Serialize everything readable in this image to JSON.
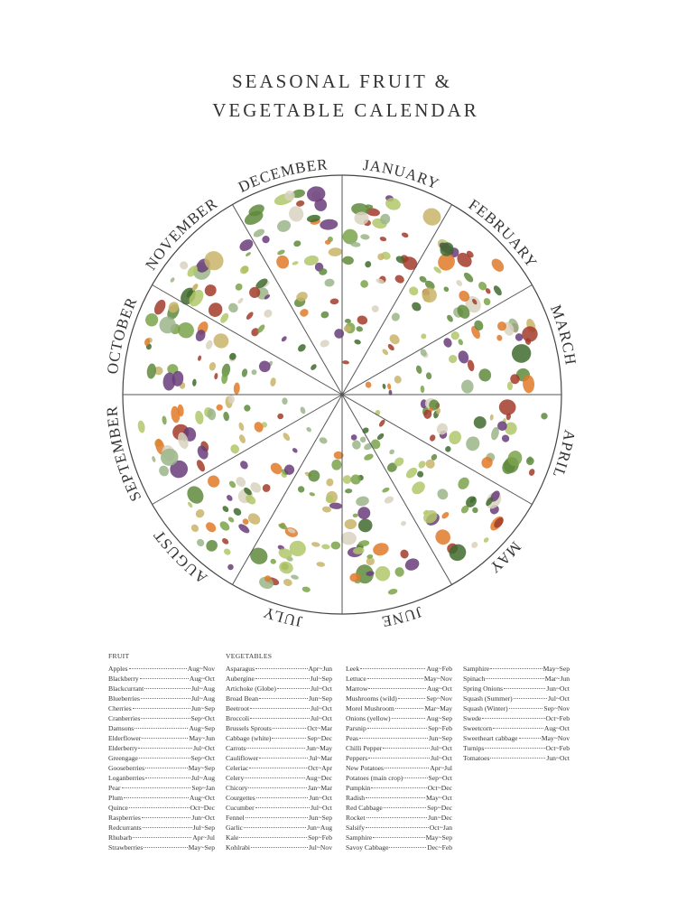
{
  "title_lines": [
    "SEASONAL FRUIT &",
    "VEGETABLE CALENDAR"
  ],
  "months": [
    "JANUARY",
    "FEBRUARY",
    "MARCH",
    "APRIL",
    "MAY",
    "JUNE",
    "JULY",
    "AUGUST",
    "SEPTEMBER",
    "OCTOBER",
    "NOVEMBER",
    "DECEMBER"
  ],
  "fruit": {
    "heading": "FRUIT",
    "items": [
      {
        "name": "Apples",
        "season": "Aug~Nov"
      },
      {
        "name": "Blackberry",
        "season": "Aug~Oct"
      },
      {
        "name": "Blackcurrant",
        "season": "Jul~Aug"
      },
      {
        "name": "Blueberries",
        "season": "Jul~Aug"
      },
      {
        "name": "Cherries",
        "season": "Jun~Sep"
      },
      {
        "name": "Cranberries",
        "season": "Sep~Oct"
      },
      {
        "name": "Damsons",
        "season": "Aug~Sep"
      },
      {
        "name": "Elderflower",
        "season": "May~Jun"
      },
      {
        "name": "Elderberry",
        "season": "Jul~Oct"
      },
      {
        "name": "Greengage",
        "season": "Sep~Oct"
      },
      {
        "name": "Gooseberries",
        "season": "May~Sep"
      },
      {
        "name": "Loganberries",
        "season": "Jul~Aug"
      },
      {
        "name": "Pear",
        "season": "Sep~Jan"
      },
      {
        "name": "Plum",
        "season": "Aug~Oct"
      },
      {
        "name": "Quince",
        "season": "Oct~Dec"
      },
      {
        "name": "Raspberries",
        "season": "Jun~Oct"
      },
      {
        "name": "Redcurrants",
        "season": "Jul~Sep"
      },
      {
        "name": "Rhubarb",
        "season": "Apr~Jul"
      },
      {
        "name": "Strawberries",
        "season": "May~Sep"
      }
    ]
  },
  "vegetables": {
    "heading": "VEGETABLES",
    "columns": [
      [
        {
          "name": "Asparagus",
          "season": "Apr~Jun"
        },
        {
          "name": "Aubergine",
          "season": "Jul~Sep"
        },
        {
          "name": "Artichoke (Globe)",
          "season": "Jul~Oct"
        },
        {
          "name": "Broad Bean",
          "season": "Jun~Sep"
        },
        {
          "name": "Beetroot",
          "season": "Jul~Oct"
        },
        {
          "name": "Broccoli",
          "season": "Jul~Oct"
        },
        {
          "name": "Brussels Sprouts",
          "season": "Oct~Mar"
        },
        {
          "name": "Cabbage (white)",
          "season": "Sep~Dec"
        },
        {
          "name": "Carrots",
          "season": "Jun~May"
        },
        {
          "name": "Cauliflower",
          "season": "Jul~Mar"
        },
        {
          "name": "Celeriac",
          "season": "Oct~Apr"
        },
        {
          "name": "Celery",
          "season": "Aug~Dec"
        },
        {
          "name": "Chicory",
          "season": "Jan~Mar"
        },
        {
          "name": "Courgettes",
          "season": "Jun~Oct"
        },
        {
          "name": "Cucumber",
          "season": "Jul~Oct"
        },
        {
          "name": "Fennel",
          "season": "Jun~Sep"
        },
        {
          "name": "Garlic",
          "season": "Jun~Aug"
        },
        {
          "name": "Kale",
          "season": "Sep~Feb"
        },
        {
          "name": "Kohlrabi",
          "season": "Jul~Nov"
        }
      ],
      [
        {
          "name": "Leek",
          "season": "Aug~Feb"
        },
        {
          "name": "Lettuce",
          "season": "May~Nov"
        },
        {
          "name": "Marrow",
          "season": "Aug~Oct"
        },
        {
          "name": "Mushrooms (wild)",
          "season": "Sep~Nov"
        },
        {
          "name": "Morel Mushroom",
          "season": "Mar~May"
        },
        {
          "name": "Onions (yellow)",
          "season": "Aug~Sep"
        },
        {
          "name": "Parsnip",
          "season": "Sep~Feb"
        },
        {
          "name": "Peas",
          "season": "Jun~Sep"
        },
        {
          "name": "Chilli Pepper",
          "season": "Jul~Oct"
        },
        {
          "name": "Peppers",
          "season": "Jul~Oct"
        },
        {
          "name": "New Potatoes",
          "season": "Apr~Jul"
        },
        {
          "name": "Potatoes (main crop)",
          "season": "Sep~Oct"
        },
        {
          "name": "Pumpkin",
          "season": "Oct~Dec"
        },
        {
          "name": "Radish",
          "season": "May~Oct"
        },
        {
          "name": "Red Cabbage",
          "season": "Sep~Dec"
        },
        {
          "name": "Rocket",
          "season": "Jun~Dec"
        },
        {
          "name": "Salsify",
          "season": "Oct~Jan"
        },
        {
          "name": "Samphire",
          "season": "May~Sep"
        },
        {
          "name": "Savoy Cabbage",
          "season": "Dec~Feb"
        }
      ],
      [
        {
          "name": "Samphire",
          "season": "May~Sep"
        },
        {
          "name": "Spinach",
          "season": "Mar~Jun"
        },
        {
          "name": "Spring Onions",
          "season": "Jun~Oct"
        },
        {
          "name": "Squash (Summer)",
          "season": "Jul~Oct"
        },
        {
          "name": "Squash (Winter)",
          "season": "Sep~Nov"
        },
        {
          "name": "Swede",
          "season": "Oct~Feb"
        },
        {
          "name": "Sweetcorn",
          "season": "Aug~Oct"
        },
        {
          "name": "Sweetheart cabbage",
          "season": "May~Nov"
        },
        {
          "name": "Turnips",
          "season": "Oct~Feb"
        },
        {
          "name": "Tomatoes",
          "season": "Jun~Oct"
        }
      ]
    ]
  }
}
